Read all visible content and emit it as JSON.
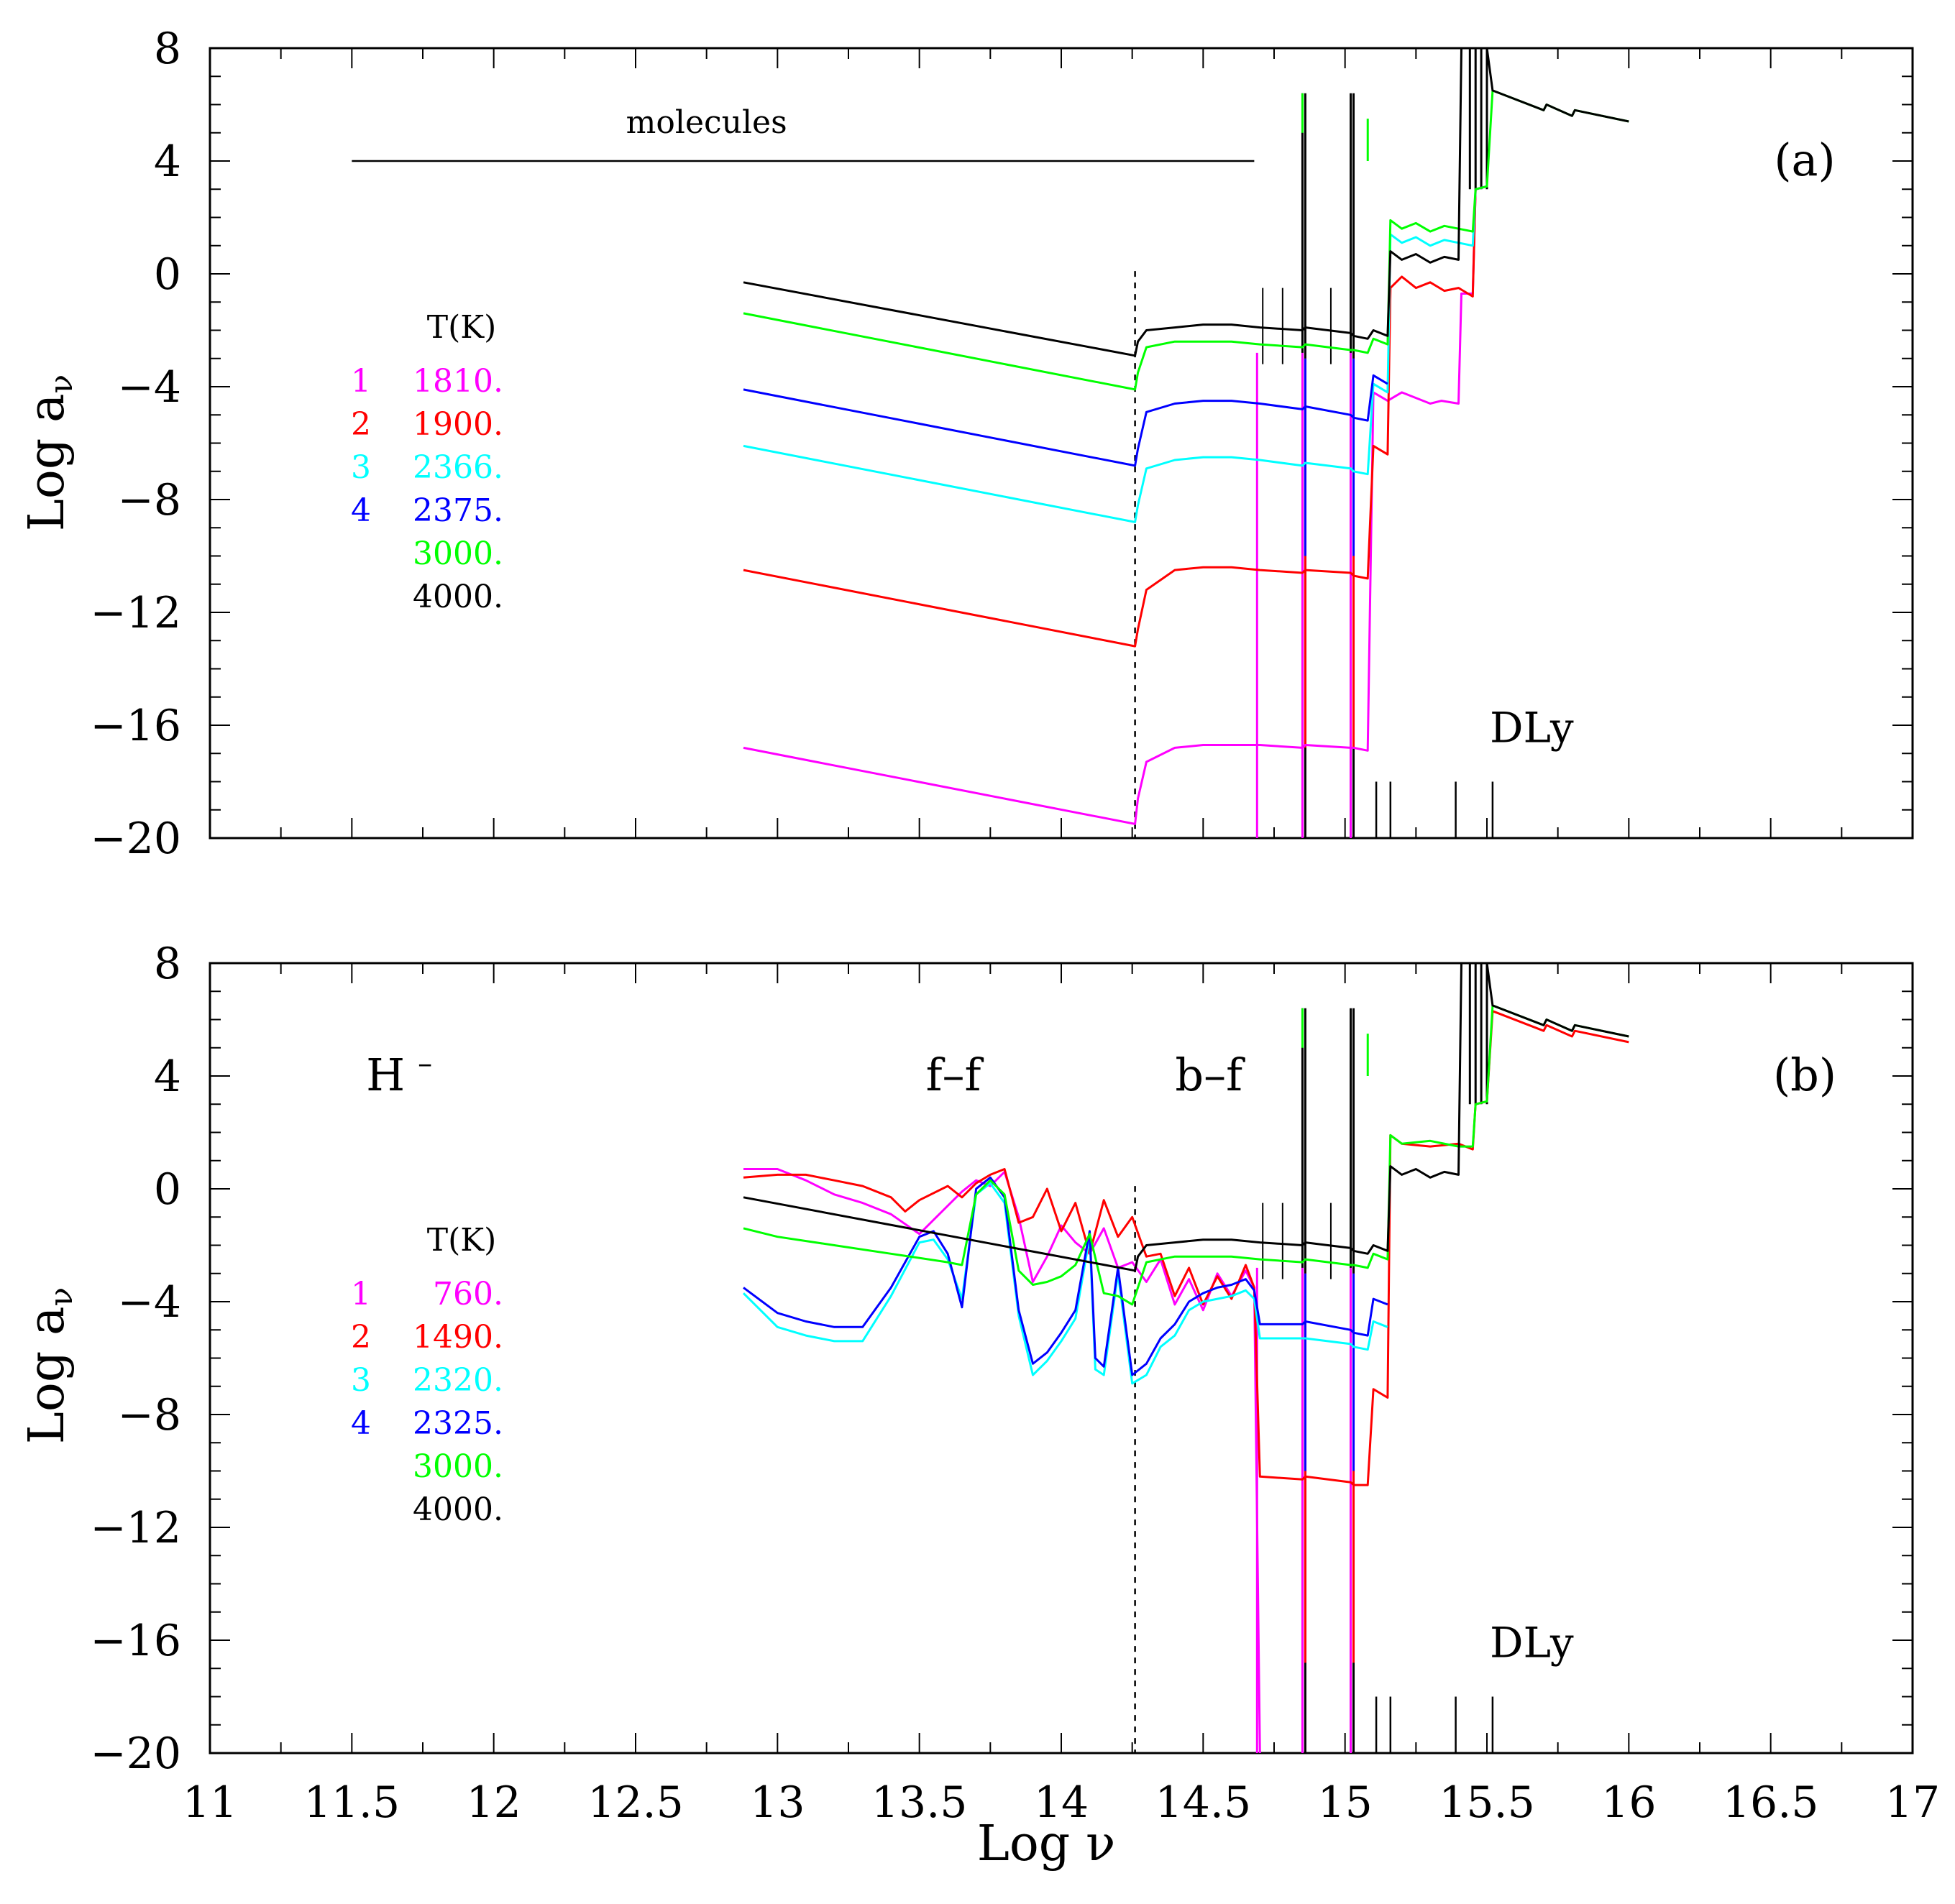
{
  "figure": {
    "x_axis_label": "Log ν",
    "y_axis_label": "Log a",
    "y_axis_label_subscript": "ν",
    "x_tick_labels": [
      "11",
      "11.5",
      "12",
      "12.5",
      "13",
      "13.5",
      "14",
      "14.5",
      "15",
      "15.5",
      "16",
      "16.5",
      "17"
    ],
    "y_tick_labels": [
      "−20",
      "−16",
      "−12",
      "−8",
      "−4",
      "0",
      "4",
      "8"
    ]
  },
  "colors": {
    "magenta": "#ff00ff",
    "red": "#ff0000",
    "cyan": "#00ffff",
    "blue": "#0000ff",
    "green": "#00ff00",
    "black": "#000000"
  },
  "chart_data": [
    {
      "type": "line",
      "panel_label": "(a)",
      "xlabel": "",
      "ylabel": "Log aν",
      "xlim": [
        11,
        17
      ],
      "ylim": [
        -20,
        8
      ],
      "annotations": {
        "molecules": "molecules",
        "molecules_range": [
          11.5,
          14.68
        ],
        "dly": "DLy",
        "divider_log_nu": 14.26
      },
      "legend": {
        "title": "T(K)",
        "entries": [
          {
            "num": "1",
            "temp": "1810.",
            "color": "magenta"
          },
          {
            "num": "2",
            "temp": "1900.",
            "color": "red"
          },
          {
            "num": "3",
            "temp": "2366.",
            "color": "cyan"
          },
          {
            "num": "4",
            "temp": "2375.",
            "color": "blue"
          },
          {
            "num": "",
            "temp": "3000.",
            "color": "green"
          },
          {
            "num": "",
            "temp": "4000.",
            "color": "black"
          }
        ]
      },
      "series": [
        {
          "name": "1810.",
          "color": "magenta",
          "x": [
            12.88,
            14.26,
            14.27,
            14.3,
            14.4,
            14.5,
            14.6,
            14.7,
            14.85,
            14.86,
            15.02,
            15.03,
            15.08,
            15.1,
            15.15,
            15.2,
            15.3,
            15.34,
            15.4,
            15.41,
            15.45,
            15.46,
            15.5
          ],
          "y": [
            -16.8,
            -19.5,
            -18.6,
            -17.3,
            -16.8,
            -16.7,
            -16.7,
            -16.7,
            -16.8,
            -16.7,
            -16.8,
            -16.8,
            -16.9,
            -4.2,
            -4.5,
            -4.2,
            -4.6,
            -4.5,
            -4.6,
            -0.7,
            -0.7,
            3.0,
            3.1
          ]
        },
        {
          "name": "1900.",
          "color": "red",
          "x": [
            12.88,
            14.26,
            14.27,
            14.3,
            14.4,
            14.5,
            14.6,
            14.7,
            14.85,
            14.86,
            15.02,
            15.03,
            15.08,
            15.1,
            15.15,
            15.16,
            15.2,
            15.25,
            15.3,
            15.35,
            15.4,
            15.45,
            15.46,
            15.5
          ],
          "y": [
            -10.5,
            -13.2,
            -12.6,
            -11.2,
            -10.5,
            -10.4,
            -10.4,
            -10.5,
            -10.6,
            -10.5,
            -10.6,
            -10.7,
            -10.8,
            -6.1,
            -6.4,
            -0.5,
            -0.1,
            -0.5,
            -0.3,
            -0.6,
            -0.5,
            -0.8,
            3.0,
            3.1
          ]
        },
        {
          "name": "2366.",
          "color": "cyan",
          "x": [
            12.88,
            14.26,
            14.27,
            14.3,
            14.4,
            14.5,
            14.6,
            14.7,
            14.85,
            14.86,
            15.02,
            15.03,
            15.08,
            15.1,
            15.15,
            15.16,
            15.2,
            15.25,
            15.3,
            15.35,
            15.4,
            15.45,
            15.46,
            15.5
          ],
          "y": [
            -6.1,
            -8.8,
            -8.2,
            -6.9,
            -6.6,
            -6.5,
            -6.5,
            -6.6,
            -6.8,
            -6.7,
            -6.9,
            -7.0,
            -7.1,
            -3.9,
            -4.2,
            1.4,
            1.1,
            1.3,
            1.0,
            1.2,
            1.1,
            1.0,
            3.0,
            3.1
          ]
        },
        {
          "name": "2375.",
          "color": "blue",
          "x": [
            12.88,
            14.26,
            14.27,
            14.3,
            14.4,
            14.5,
            14.6,
            14.7,
            14.85,
            14.86,
            15.02,
            15.03,
            15.08,
            15.1,
            15.15
          ],
          "y": [
            -4.1,
            -6.8,
            -6.2,
            -4.9,
            -4.6,
            -4.5,
            -4.5,
            -4.6,
            -4.8,
            -4.7,
            -5.0,
            -5.1,
            -5.2,
            -3.6,
            -3.9
          ]
        },
        {
          "name": "3000.",
          "color": "green",
          "x": [
            12.88,
            14.26,
            14.27,
            14.3,
            14.4,
            14.5,
            14.6,
            14.7,
            14.85,
            14.86,
            15.02,
            15.03,
            15.08,
            15.1,
            15.15,
            15.16,
            15.2,
            15.25,
            15.3,
            15.35,
            15.4,
            15.45,
            15.46,
            15.5,
            15.52,
            15.7,
            15.71,
            15.8,
            15.81,
            16.0
          ],
          "y": [
            -1.4,
            -4.1,
            -3.5,
            -2.6,
            -2.4,
            -2.4,
            -2.4,
            -2.5,
            -2.6,
            -2.5,
            -2.7,
            -2.7,
            -2.8,
            -2.3,
            -2.5,
            1.9,
            1.6,
            1.8,
            1.5,
            1.7,
            1.6,
            1.5,
            3.0,
            3.1,
            6.5,
            5.8,
            6.0,
            5.6,
            5.8,
            5.4
          ]
        },
        {
          "name": "4000.",
          "color": "black",
          "x": [
            12.88,
            14.26,
            14.27,
            14.3,
            14.4,
            14.5,
            14.6,
            14.7,
            14.85,
            14.86,
            15.02,
            15.03,
            15.08,
            15.1,
            15.15,
            15.16,
            15.2,
            15.25,
            15.3,
            15.35,
            15.4,
            15.41,
            15.5,
            15.52,
            15.7,
            15.71,
            15.8,
            15.81,
            16.0
          ],
          "y": [
            -0.3,
            -2.9,
            -2.4,
            -2.0,
            -1.9,
            -1.8,
            -1.8,
            -1.9,
            -2.0,
            -1.9,
            -2.1,
            -2.2,
            -2.3,
            -2.0,
            -2.2,
            0.8,
            0.5,
            0.7,
            0.4,
            0.6,
            0.5,
            8.0,
            8.0,
            6.5,
            5.8,
            6.0,
            5.6,
            5.8,
            5.4
          ]
        }
      ]
    },
    {
      "type": "line",
      "panel_label": "(b)",
      "xlabel": "Log ν",
      "ylabel": "Log aν",
      "xlim": [
        11,
        17
      ],
      "ylim": [
        -20,
        8
      ],
      "annotations": {
        "species": "H",
        "species_sup": "–",
        "ff": "f–f",
        "bf": "b–f",
        "dly": "DLy",
        "divider_log_nu": 14.26
      },
      "legend": {
        "title": "T(K)",
        "entries": [
          {
            "num": "1",
            "temp": "760.",
            "color": "magenta"
          },
          {
            "num": "2",
            "temp": "1490.",
            "color": "red"
          },
          {
            "num": "3",
            "temp": "2320.",
            "color": "cyan"
          },
          {
            "num": "4",
            "temp": "2325.",
            "color": "blue"
          },
          {
            "num": "",
            "temp": "3000.",
            "color": "green"
          },
          {
            "num": "",
            "temp": "4000.",
            "color": "black"
          }
        ]
      },
      "series": [
        {
          "name": "760.",
          "color": "magenta",
          "x": [
            12.88,
            13.0,
            13.1,
            13.2,
            13.3,
            13.4,
            13.5,
            13.6,
            13.65,
            13.7,
            13.75,
            13.8,
            13.85,
            13.9,
            13.95,
            14.0,
            14.05,
            14.1,
            14.15,
            14.2,
            14.25,
            14.3,
            14.35,
            14.4,
            14.45,
            14.5,
            14.55,
            14.6,
            14.65,
            14.68,
            14.7
          ],
          "y": [
            0.7,
            0.7,
            0.3,
            -0.2,
            -0.5,
            -0.9,
            -1.6,
            -0.6,
            -0.1,
            0.3,
            0.1,
            0.6,
            -1.0,
            -3.3,
            -2.4,
            -1.3,
            -1.9,
            -2.3,
            -1.4,
            -2.8,
            -2.6,
            -3.3,
            -2.5,
            -4.1,
            -3.2,
            -4.3,
            -3.0,
            -3.8,
            -2.9,
            -3.5,
            -20.0
          ]
        },
        {
          "name": "1490.",
          "color": "red",
          "x": [
            12.88,
            13.0,
            13.1,
            13.2,
            13.3,
            13.4,
            13.45,
            13.5,
            13.6,
            13.65,
            13.7,
            13.75,
            13.8,
            13.85,
            13.9,
            13.95,
            14.0,
            14.05,
            14.1,
            14.15,
            14.2,
            14.25,
            14.3,
            14.35,
            14.4,
            14.45,
            14.5,
            14.55,
            14.6,
            14.65,
            14.68,
            14.7,
            14.85,
            14.86,
            15.02,
            15.03,
            15.08,
            15.1,
            15.15,
            15.16,
            15.2,
            15.3,
            15.4,
            15.45,
            15.46,
            15.5,
            15.52,
            15.7,
            15.71,
            15.8,
            15.81,
            16.0
          ],
          "y": [
            0.4,
            0.5,
            0.5,
            0.3,
            0.1,
            -0.3,
            -0.8,
            -0.4,
            0.1,
            -0.3,
            0.2,
            0.5,
            0.7,
            -1.2,
            -1.0,
            0.0,
            -1.5,
            -0.5,
            -2.3,
            -0.4,
            -1.7,
            -1.0,
            -2.4,
            -2.3,
            -3.8,
            -2.8,
            -4.1,
            -3.1,
            -3.9,
            -2.7,
            -3.5,
            -10.2,
            -10.3,
            -10.2,
            -10.4,
            -10.5,
            -10.5,
            -7.1,
            -7.4,
            1.9,
            1.6,
            1.5,
            1.6,
            1.4,
            3.0,
            3.1,
            6.3,
            5.6,
            5.8,
            5.4,
            5.6,
            5.2
          ]
        },
        {
          "name": "2320.",
          "color": "cyan",
          "x": [
            12.88,
            13.0,
            13.1,
            13.2,
            13.3,
            13.4,
            13.5,
            13.55,
            13.6,
            13.65,
            13.7,
            13.75,
            13.8,
            13.85,
            13.9,
            13.95,
            14.0,
            14.05,
            14.1,
            14.12,
            14.15,
            14.2,
            14.25,
            14.3,
            14.35,
            14.4,
            14.45,
            14.5,
            14.55,
            14.6,
            14.65,
            14.68,
            14.7,
            14.85,
            14.86,
            15.02,
            15.03,
            15.08,
            15.1,
            15.15
          ],
          "y": [
            -3.7,
            -4.9,
            -5.2,
            -5.4,
            -5.4,
            -3.8,
            -1.9,
            -1.8,
            -2.5,
            -3.9,
            -0.2,
            0.2,
            -0.5,
            -4.5,
            -6.6,
            -6.1,
            -5.4,
            -4.6,
            -1.7,
            -6.4,
            -6.6,
            -3.0,
            -6.9,
            -6.6,
            -5.6,
            -5.2,
            -4.3,
            -4.0,
            -3.9,
            -3.8,
            -3.6,
            -3.9,
            -5.3,
            -5.3,
            -5.3,
            -5.5,
            -5.6,
            -5.7,
            -4.7,
            -4.9
          ]
        },
        {
          "name": "2325.",
          "color": "blue",
          "x": [
            12.88,
            13.0,
            13.1,
            13.2,
            13.3,
            13.4,
            13.5,
            13.55,
            13.6,
            13.65,
            13.7,
            13.75,
            13.8,
            13.85,
            13.9,
            13.95,
            14.0,
            14.05,
            14.1,
            14.12,
            14.15,
            14.2,
            14.25,
            14.3,
            14.35,
            14.4,
            14.45,
            14.5,
            14.55,
            14.6,
            14.65,
            14.68,
            14.7,
            14.85,
            14.86,
            15.02,
            15.03,
            15.08,
            15.1,
            15.15
          ],
          "y": [
            -3.5,
            -4.4,
            -4.7,
            -4.9,
            -4.9,
            -3.5,
            -1.7,
            -1.5,
            -2.3,
            -4.2,
            0.0,
            0.4,
            -0.3,
            -4.3,
            -6.2,
            -5.8,
            -5.1,
            -4.3,
            -1.5,
            -6.0,
            -6.3,
            -2.8,
            -6.6,
            -6.2,
            -5.3,
            -4.8,
            -4.0,
            -3.7,
            -3.5,
            -3.4,
            -3.2,
            -3.6,
            -4.8,
            -4.8,
            -4.7,
            -5.0,
            -5.1,
            -5.2,
            -3.9,
            -4.1
          ]
        },
        {
          "name": "3000.",
          "color": "green",
          "x": [
            12.88,
            13.0,
            13.2,
            13.4,
            13.6,
            13.65,
            13.7,
            13.75,
            13.8,
            13.85,
            13.9,
            13.95,
            14.0,
            14.05,
            14.1,
            14.15,
            14.2,
            14.25,
            14.27,
            14.3,
            14.4,
            14.5,
            14.6,
            14.7,
            14.85,
            14.86,
            15.02,
            15.03,
            15.08,
            15.1,
            15.15,
            15.16,
            15.2,
            15.3,
            15.4,
            15.45,
            15.46,
            15.5,
            15.52,
            15.7,
            15.71,
            15.8,
            15.81,
            16.0
          ],
          "y": [
            -1.4,
            -1.7,
            -2.0,
            -2.3,
            -2.6,
            -2.7,
            -0.2,
            0.3,
            -0.2,
            -2.9,
            -3.4,
            -3.3,
            -3.1,
            -2.7,
            -1.6,
            -3.7,
            -3.8,
            -4.1,
            -3.5,
            -2.6,
            -2.4,
            -2.4,
            -2.4,
            -2.5,
            -2.6,
            -2.5,
            -2.7,
            -2.7,
            -2.8,
            -2.3,
            -2.5,
            1.9,
            1.6,
            1.7,
            1.5,
            1.5,
            3.0,
            3.1,
            6.5,
            5.8,
            6.0,
            5.6,
            5.8,
            5.4
          ]
        },
        {
          "name": "4000.",
          "color": "black",
          "x": [
            12.88,
            14.26,
            14.27,
            14.3,
            14.4,
            14.5,
            14.6,
            14.7,
            14.85,
            14.86,
            15.02,
            15.03,
            15.08,
            15.1,
            15.15,
            15.16,
            15.2,
            15.25,
            15.3,
            15.35,
            15.4,
            15.41,
            15.5,
            15.52,
            15.7,
            15.71,
            15.8,
            15.81,
            16.0
          ],
          "y": [
            -0.3,
            -2.9,
            -2.4,
            -2.0,
            -1.9,
            -1.8,
            -1.8,
            -1.9,
            -2.0,
            -1.9,
            -2.1,
            -2.2,
            -2.3,
            -2.0,
            -2.2,
            0.8,
            0.5,
            0.7,
            0.4,
            0.6,
            0.5,
            8.0,
            8.0,
            6.5,
            5.8,
            6.0,
            5.6,
            5.8,
            5.4
          ]
        }
      ]
    }
  ]
}
